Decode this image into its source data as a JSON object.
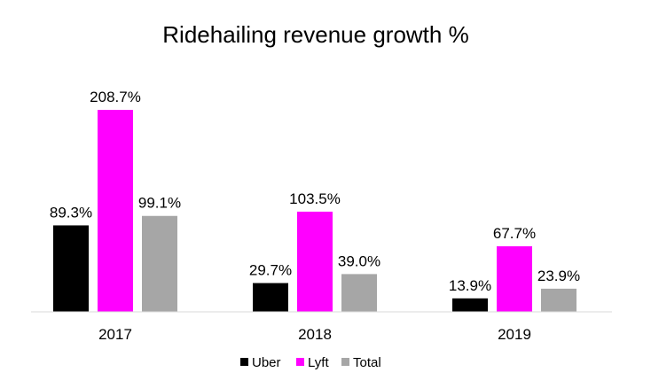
{
  "chart_data": {
    "type": "bar",
    "title": "Ridehailing revenue growth %",
    "categories": [
      "2017",
      "2018",
      "2019"
    ],
    "series": [
      {
        "name": "Uber",
        "values": [
          89.3,
          29.7,
          13.9
        ],
        "labels": [
          "89.3%",
          "29.7%",
          "13.9%"
        ],
        "color": "#000000"
      },
      {
        "name": "Lyft",
        "values": [
          208.7,
          103.5,
          67.7
        ],
        "labels": [
          "208.7%",
          "103.5%",
          "67.7%"
        ],
        "color": "#FF00FF"
      },
      {
        "name": "Total",
        "values": [
          99.1,
          39.0,
          23.9
        ],
        "labels": [
          "99.1%",
          "39.0%",
          "23.9%"
        ],
        "color": "#A6A6A6"
      }
    ],
    "ylim": [
      0,
      210
    ],
    "grid": false,
    "legend": "bottom",
    "xlabel": "",
    "ylabel": ""
  }
}
